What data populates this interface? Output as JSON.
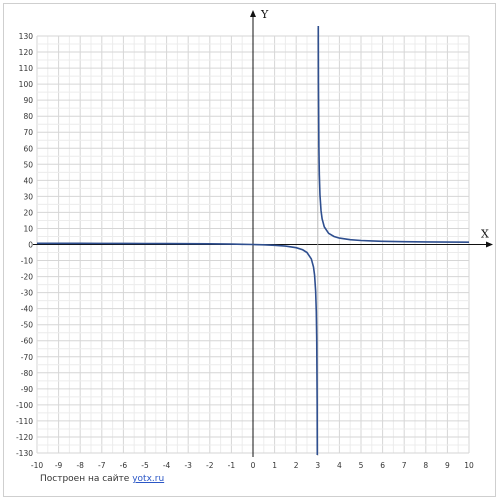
{
  "chart_data": {
    "type": "line",
    "title": "",
    "xlabel": "X",
    "ylabel": "Y",
    "xlim": [
      -10,
      10
    ],
    "ylim": [
      -130,
      130
    ],
    "x_ticks": [
      -10,
      -9,
      -8,
      -7,
      -6,
      -5,
      -4,
      -3,
      -2,
      -1,
      0,
      1,
      2,
      3,
      4,
      5,
      6,
      7,
      8,
      9,
      10
    ],
    "y_ticks": [
      -130,
      -120,
      -110,
      -100,
      -90,
      -80,
      -70,
      -60,
      -50,
      -40,
      -30,
      -20,
      -10,
      0,
      10,
      20,
      30,
      40,
      50,
      60,
      70,
      80,
      90,
      100,
      110,
      120,
      130
    ],
    "grid": true,
    "vertical_asymptote_x": 3,
    "series": [
      {
        "color": "#2f4f8f",
        "points": [
          [
            -10,
            0.77
          ],
          [
            -9,
            0.75
          ],
          [
            -8,
            0.73
          ],
          [
            -7,
            0.7
          ],
          [
            -6,
            0.67
          ],
          [
            -5,
            0.63
          ],
          [
            -4,
            0.57
          ],
          [
            -3,
            0.5
          ],
          [
            -2,
            0.4
          ],
          [
            -1,
            0.25
          ],
          [
            -0.5,
            0.14
          ],
          [
            0,
            0
          ],
          [
            0.5,
            -0.2
          ],
          [
            1,
            -0.5
          ],
          [
            1.5,
            -1
          ],
          [
            2,
            -2
          ],
          [
            2.3,
            -3.29
          ],
          [
            2.5,
            -5
          ],
          [
            2.7,
            -9
          ],
          [
            2.8,
            -14
          ],
          [
            2.85,
            -19
          ],
          [
            2.9,
            -29
          ],
          [
            2.93,
            -41.86
          ],
          [
            2.95,
            -59
          ],
          [
            2.97,
            -99
          ],
          [
            2.98,
            -149
          ]
        ]
      },
      {
        "color": "#2f4f8f",
        "points": [
          [
            3.02,
            151
          ],
          [
            3.03,
            101
          ],
          [
            3.05,
            61
          ],
          [
            3.07,
            43.86
          ],
          [
            3.1,
            31
          ],
          [
            3.15,
            21
          ],
          [
            3.2,
            16
          ],
          [
            3.3,
            11
          ],
          [
            3.5,
            7
          ],
          [
            3.75,
            5
          ],
          [
            4,
            4
          ],
          [
            4.5,
            3
          ],
          [
            5,
            2.5
          ],
          [
            5.5,
            2.2
          ],
          [
            6,
            2
          ],
          [
            7,
            1.75
          ],
          [
            8,
            1.6
          ],
          [
            9,
            1.5
          ],
          [
            10,
            1.43
          ]
        ]
      }
    ]
  },
  "footer": {
    "credit_prefix": "Построен на сайте",
    "credit_link": "yotx.ru"
  }
}
